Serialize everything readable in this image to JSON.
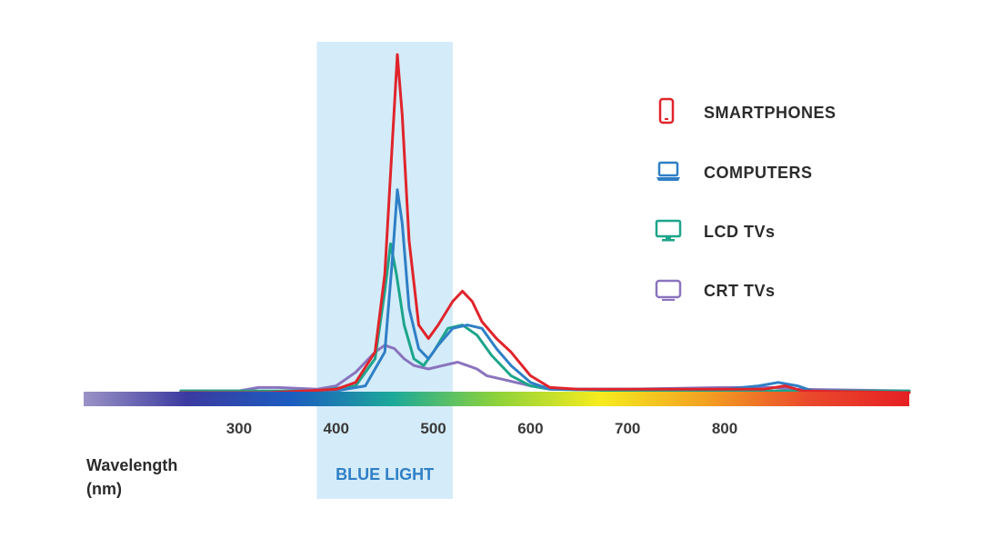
{
  "chart_data": {
    "type": "line",
    "xlabel_lines": [
      "Wavelength",
      "(nm)"
    ],
    "ylabel": "",
    "xlim": [
      240,
      990
    ],
    "ylim": [
      0,
      1
    ],
    "xticks": [
      300,
      400,
      500,
      600,
      700,
      800
    ],
    "highlight_band": {
      "label": "BLUE LIGHT",
      "range": [
        380,
        520
      ],
      "color": "#d4ecf9"
    },
    "spectrum_bar": {
      "range": [
        140,
        990
      ],
      "stops": [
        "#9b93c6",
        "#3b3aa0",
        "#1c5cc0",
        "#1ca99a",
        "#8dd23a",
        "#f6ec1e",
        "#f3a321",
        "#ea4b2c",
        "#e62024"
      ]
    },
    "legend_position": "top-right",
    "series": [
      {
        "name": "SMARTPHONES",
        "color": "#e0242b",
        "icon": "smartphone-icon",
        "points": [
          [
            240,
            0
          ],
          [
            330,
            0
          ],
          [
            370,
            0.005
          ],
          [
            400,
            0.01
          ],
          [
            420,
            0.03
          ],
          [
            440,
            0.12
          ],
          [
            450,
            0.35
          ],
          [
            458,
            0.75
          ],
          [
            463,
            1.0
          ],
          [
            468,
            0.82
          ],
          [
            475,
            0.45
          ],
          [
            485,
            0.2
          ],
          [
            495,
            0.16
          ],
          [
            505,
            0.2
          ],
          [
            520,
            0.27
          ],
          [
            530,
            0.3
          ],
          [
            540,
            0.27
          ],
          [
            550,
            0.21
          ],
          [
            565,
            0.16
          ],
          [
            580,
            0.12
          ],
          [
            600,
            0.05
          ],
          [
            620,
            0.015
          ],
          [
            650,
            0.01
          ],
          [
            700,
            0.01
          ],
          [
            800,
            0.01
          ],
          [
            840,
            0.01
          ],
          [
            862,
            0.02
          ],
          [
            880,
            0.005
          ],
          [
            990,
            0
          ]
        ]
      },
      {
        "name": "COMPUTERS",
        "color": "#2f7fc6",
        "icon": "laptop-icon",
        "points": [
          [
            240,
            0
          ],
          [
            350,
            0
          ],
          [
            400,
            0.005
          ],
          [
            430,
            0.02
          ],
          [
            450,
            0.12
          ],
          [
            458,
            0.4
          ],
          [
            463,
            0.6
          ],
          [
            468,
            0.5
          ],
          [
            475,
            0.25
          ],
          [
            485,
            0.13
          ],
          [
            495,
            0.1
          ],
          [
            505,
            0.14
          ],
          [
            520,
            0.19
          ],
          [
            535,
            0.2
          ],
          [
            550,
            0.19
          ],
          [
            565,
            0.13
          ],
          [
            580,
            0.08
          ],
          [
            600,
            0.03
          ],
          [
            620,
            0.01
          ],
          [
            700,
            0.01
          ],
          [
            800,
            0.01
          ],
          [
            835,
            0.02
          ],
          [
            855,
            0.03
          ],
          [
            875,
            0.02
          ],
          [
            890,
            0.005
          ],
          [
            990,
            0
          ]
        ]
      },
      {
        "name": "LCD TVs",
        "color": "#1ca58a",
        "icon": "monitor-icon",
        "points": [
          [
            240,
            0.005
          ],
          [
            300,
            0.005
          ],
          [
            380,
            0.005
          ],
          [
            420,
            0.02
          ],
          [
            440,
            0.1
          ],
          [
            450,
            0.3
          ],
          [
            456,
            0.44
          ],
          [
            462,
            0.35
          ],
          [
            470,
            0.2
          ],
          [
            480,
            0.1
          ],
          [
            490,
            0.08
          ],
          [
            500,
            0.12
          ],
          [
            515,
            0.19
          ],
          [
            530,
            0.2
          ],
          [
            545,
            0.17
          ],
          [
            560,
            0.11
          ],
          [
            580,
            0.05
          ],
          [
            600,
            0.02
          ],
          [
            620,
            0.01
          ],
          [
            700,
            0.005
          ],
          [
            990,
            0.005
          ]
        ]
      },
      {
        "name": "CRT TVs",
        "color": "#8a73be",
        "icon": "crt-tv-icon",
        "points": [
          [
            240,
            0.005
          ],
          [
            300,
            0.005
          ],
          [
            320,
            0.015
          ],
          [
            340,
            0.015
          ],
          [
            380,
            0.01
          ],
          [
            400,
            0.02
          ],
          [
            420,
            0.06
          ],
          [
            440,
            0.12
          ],
          [
            450,
            0.14
          ],
          [
            460,
            0.13
          ],
          [
            470,
            0.1
          ],
          [
            480,
            0.08
          ],
          [
            495,
            0.07
          ],
          [
            510,
            0.08
          ],
          [
            525,
            0.09
          ],
          [
            535,
            0.08
          ],
          [
            545,
            0.07
          ],
          [
            555,
            0.05
          ],
          [
            570,
            0.04
          ],
          [
            600,
            0.02
          ],
          [
            640,
            0.01
          ],
          [
            700,
            0.01
          ],
          [
            800,
            0.015
          ],
          [
            850,
            0.015
          ],
          [
            870,
            0.01
          ],
          [
            990,
            0.005
          ]
        ]
      }
    ]
  }
}
